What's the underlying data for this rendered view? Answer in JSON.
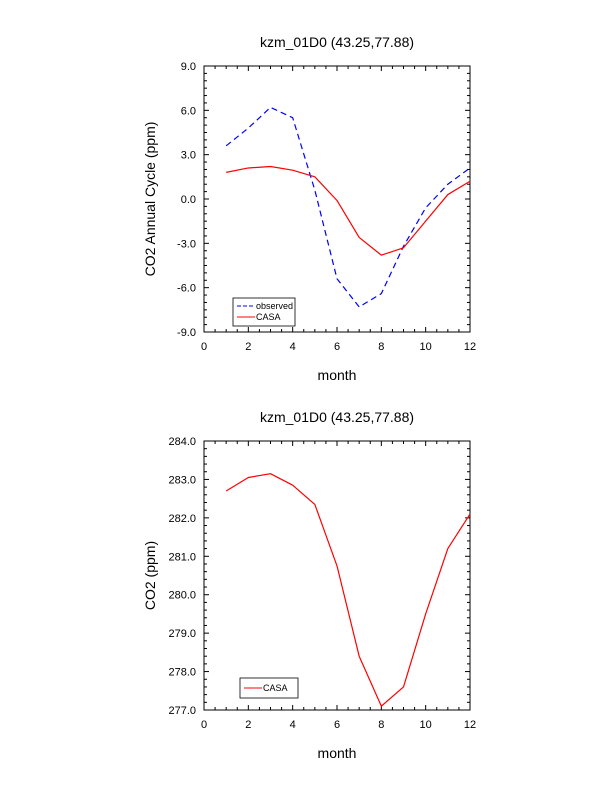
{
  "chart_data": [
    {
      "type": "line",
      "title": "kzm_01D0 (43.25,77.88)",
      "xlabel": "month",
      "ylabel": "CO2 Annual Cycle (ppm)",
      "xlim": [
        0,
        12
      ],
      "ylim": [
        -9.0,
        9.0
      ],
      "xticks": [
        "0",
        "2",
        "4",
        "6",
        "8",
        "10",
        "12"
      ],
      "yticks": [
        "-9.0",
        "-6.0",
        "-3.0",
        "0.0",
        "3.0",
        "6.0",
        "9.0"
      ],
      "legend_position": "bottom-left",
      "x": [
        1,
        2,
        3,
        4,
        5,
        6,
        7,
        8,
        9,
        10,
        11,
        12
      ],
      "series": [
        {
          "name": "observed",
          "color": "#0000ff",
          "dash": "dashed",
          "values": [
            3.6,
            4.8,
            6.2,
            5.5,
            0.6,
            -5.4,
            -7.3,
            -6.4,
            -3.2,
            -0.6,
            1.0,
            2.1
          ]
        },
        {
          "name": "CASA",
          "color": "#ff0000",
          "dash": "solid",
          "values": [
            1.8,
            2.1,
            2.2,
            1.95,
            1.5,
            -0.1,
            -2.6,
            -3.8,
            -3.3,
            -1.5,
            0.3,
            1.2
          ]
        }
      ]
    },
    {
      "type": "line",
      "title": "kzm_01D0 (43.25,77.88)",
      "xlabel": "month",
      "ylabel": "CO2 (ppm)",
      "xlim": [
        0,
        12
      ],
      "ylim": [
        277.0,
        284.0
      ],
      "xticks": [
        "0",
        "2",
        "4",
        "6",
        "8",
        "10",
        "12"
      ],
      "yticks": [
        "277.0",
        "278.0",
        "279.0",
        "280.0",
        "281.0",
        "282.0",
        "283.0",
        "284.0"
      ],
      "legend_position": "bottom-left",
      "x": [
        1,
        2,
        3,
        4,
        5,
        6,
        7,
        8,
        9,
        10,
        11,
        12
      ],
      "series": [
        {
          "name": "CASA",
          "color": "#ff0000",
          "dash": "solid",
          "values": [
            282.7,
            283.05,
            283.15,
            282.85,
            282.35,
            280.75,
            278.4,
            277.1,
            277.6,
            279.5,
            281.2,
            282.1
          ]
        }
      ]
    }
  ]
}
